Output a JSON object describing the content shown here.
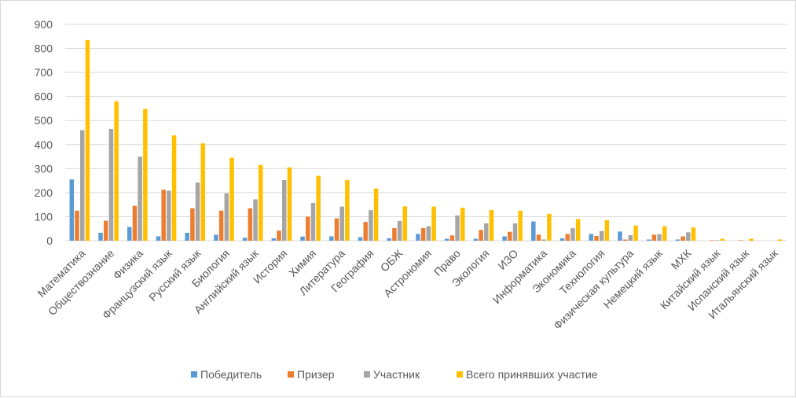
{
  "chart_data": {
    "type": "bar",
    "title": "",
    "xlabel": "",
    "ylabel": "",
    "ylim": [
      0,
      900
    ],
    "yticks": [
      0,
      100,
      200,
      300,
      400,
      500,
      600,
      700,
      800,
      900
    ],
    "grid": true,
    "legend_position": "bottom",
    "categories": [
      "Математика",
      "Обществознание",
      "Физика",
      "Французский язык",
      "Русский язык",
      "Биология",
      "Английский язык",
      "История",
      "Химия",
      "Литература",
      "География",
      "ОБЖ",
      "Астрономия",
      "Право",
      "Экология",
      "ИЗО",
      "Информатика",
      "Экономика",
      "Технология",
      "Физическая культура",
      "Немецкий язык",
      "МХК",
      "Китайский язык",
      "Испанский язык",
      "Итальянский язык"
    ],
    "series": [
      {
        "name": "Победитель",
        "color": "#5b9bd5",
        "values": [
          255,
          33,
          57,
          18,
          33,
          25,
          12,
          10,
          17,
          18,
          15,
          10,
          28,
          8,
          8,
          18,
          80,
          10,
          28,
          38,
          5,
          5,
          0,
          0,
          0
        ]
      },
      {
        "name": "Призер",
        "color": "#ed7d31",
        "values": [
          125,
          83,
          145,
          212,
          135,
          125,
          135,
          42,
          100,
          93,
          78,
          52,
          52,
          22,
          45,
          37,
          25,
          28,
          20,
          5,
          25,
          18,
          2,
          2,
          0
        ]
      },
      {
        "name": "Участник",
        "color": "#a5a5a5",
        "values": [
          460,
          465,
          350,
          208,
          242,
          197,
          172,
          252,
          157,
          142,
          127,
          82,
          60,
          105,
          72,
          72,
          5,
          52,
          40,
          23,
          27,
          35,
          2,
          0,
          0
        ]
      },
      {
        "name": "Всего принявших участие",
        "color": "#ffc000",
        "values": [
          835,
          580,
          548,
          438,
          405,
          345,
          315,
          305,
          270,
          252,
          217,
          143,
          142,
          137,
          128,
          125,
          112,
          90,
          85,
          63,
          60,
          55,
          8,
          8,
          5
        ]
      }
    ]
  }
}
